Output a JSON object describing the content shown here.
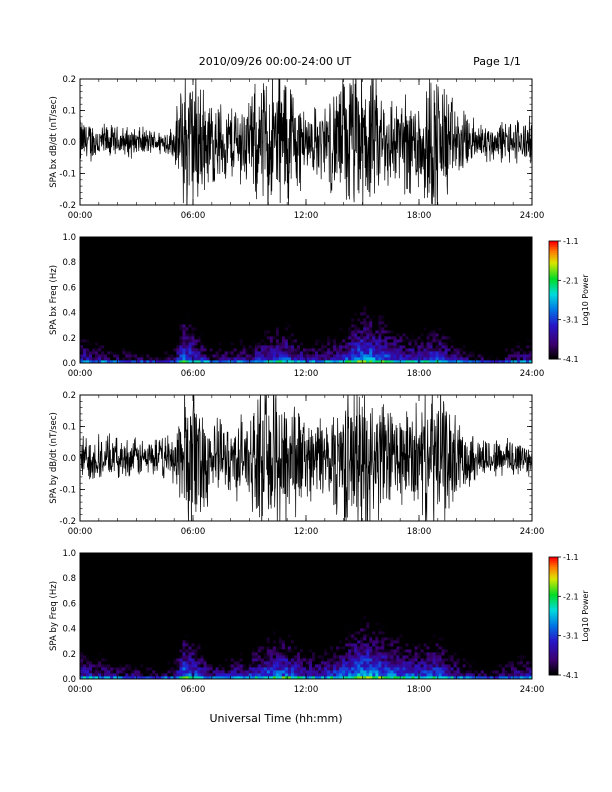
{
  "header": {
    "title": "2010/09/26  00:00-24:00 UT",
    "page": "Page 1/1"
  },
  "footer": {
    "xlabel": "Universal Time (hh:mm)"
  },
  "chart_data": [
    {
      "type": "line",
      "panel": "bx-waveform",
      "ylabel": "SPA bx dB/dt (nT/sec)",
      "xlim": [
        0,
        24
      ],
      "ylim": [
        -0.2,
        0.2
      ],
      "xticks": [
        "00:00",
        "06:00",
        "12:00",
        "18:00",
        "24:00"
      ],
      "yticks": [
        "0.2",
        "0.1",
        "0.0",
        "-0.1",
        "-0.2"
      ],
      "series": [
        {
          "x": [
            0,
            1,
            2,
            3,
            4,
            5,
            5.5,
            6,
            7,
            8,
            9,
            10,
            11,
            12,
            13,
            14,
            15,
            16,
            17,
            18,
            19,
            20,
            21,
            22,
            23,
            24
          ],
          "amplitude": [
            0.06,
            0.05,
            0.04,
            0.04,
            0.03,
            0.04,
            0.2,
            0.2,
            0.11,
            0.1,
            0.12,
            0.2,
            0.2,
            0.08,
            0.1,
            0.18,
            0.2,
            0.14,
            0.12,
            0.15,
            0.2,
            0.09,
            0.06,
            0.05,
            0.06,
            0.06
          ]
        }
      ]
    },
    {
      "type": "heatmap",
      "panel": "bx-spectrogram",
      "ylabel": "SPA bx Freq (Hz)",
      "xlim": [
        0,
        24
      ],
      "ylim": [
        0.0,
        1.0
      ],
      "xticks": [
        "00:00",
        "06:00",
        "12:00",
        "18:00",
        "24:00"
      ],
      "yticks": [
        "1.0",
        "0.8",
        "0.6",
        "0.4",
        "0.2",
        "0.0"
      ],
      "colorbar": {
        "label": "Log10 Power",
        "ticks": [
          "-1.1",
          "-2.1",
          "-3.1",
          "-4.1"
        ],
        "range": [
          -4.1,
          -1.1
        ]
      },
      "x": [
        0,
        1,
        2,
        3,
        4,
        5,
        5.5,
        6,
        7,
        8,
        9,
        10,
        11,
        12,
        13,
        14,
        15,
        16,
        17,
        18,
        19,
        20,
        21,
        22,
        23,
        24
      ],
      "low_freq_power": [
        -2.6,
        -2.8,
        -3.0,
        -3.1,
        -3.2,
        -3.0,
        -2.0,
        -2.3,
        -2.9,
        -2.8,
        -2.7,
        -2.4,
        -2.3,
        -2.8,
        -2.7,
        -2.4,
        -1.9,
        -2.1,
        -2.4,
        -2.5,
        -2.3,
        -2.8,
        -3.1,
        -3.2,
        -2.9,
        -2.8
      ]
    },
    {
      "type": "line",
      "panel": "by-waveform",
      "ylabel": "SPA by dB/dt (nT/sec)",
      "xlim": [
        0,
        24
      ],
      "ylim": [
        -0.2,
        0.2
      ],
      "xticks": [
        "00:00",
        "06:00",
        "12:00",
        "18:00",
        "24:00"
      ],
      "yticks": [
        "0.2",
        "0.1",
        "0.0",
        "-0.1",
        "-0.2"
      ],
      "series": [
        {
          "x": [
            0,
            1,
            2,
            3,
            4,
            5,
            5.5,
            6,
            7,
            8,
            9,
            10,
            11,
            12,
            13,
            14,
            15,
            16,
            17,
            18,
            19,
            20,
            21,
            22,
            23,
            24
          ],
          "amplitude": [
            0.06,
            0.06,
            0.05,
            0.05,
            0.05,
            0.06,
            0.2,
            0.2,
            0.1,
            0.09,
            0.12,
            0.2,
            0.2,
            0.1,
            0.11,
            0.17,
            0.2,
            0.15,
            0.12,
            0.14,
            0.2,
            0.1,
            0.06,
            0.05,
            0.06,
            0.05
          ]
        }
      ]
    },
    {
      "type": "heatmap",
      "panel": "by-spectrogram",
      "ylabel": "SPA by Freq (Hz)",
      "xlim": [
        0,
        24
      ],
      "ylim": [
        0.0,
        1.0
      ],
      "xticks": [
        "00:00",
        "06:00",
        "12:00",
        "18:00",
        "24:00"
      ],
      "yticks": [
        "1.0",
        "0.8",
        "0.6",
        "0.4",
        "0.2",
        "0.0"
      ],
      "colorbar": {
        "label": "Log10 Power",
        "ticks": [
          "-1.1",
          "-2.1",
          "-3.1",
          "-4.1"
        ],
        "range": [
          -4.1,
          -1.1
        ]
      },
      "x": [
        0,
        1,
        2,
        3,
        4,
        5,
        5.5,
        6,
        7,
        8,
        9,
        10,
        11,
        12,
        13,
        14,
        15,
        16,
        17,
        18,
        19,
        20,
        21,
        22,
        23,
        24
      ],
      "low_freq_power": [
        -2.5,
        -2.7,
        -2.9,
        -3.0,
        -3.1,
        -2.9,
        -2.0,
        -2.2,
        -2.8,
        -2.7,
        -2.5,
        -2.2,
        -2.1,
        -2.6,
        -2.5,
        -2.2,
        -1.8,
        -2.0,
        -2.2,
        -2.3,
        -2.2,
        -2.7,
        -3.0,
        -3.1,
        -2.8,
        -2.7
      ]
    }
  ]
}
